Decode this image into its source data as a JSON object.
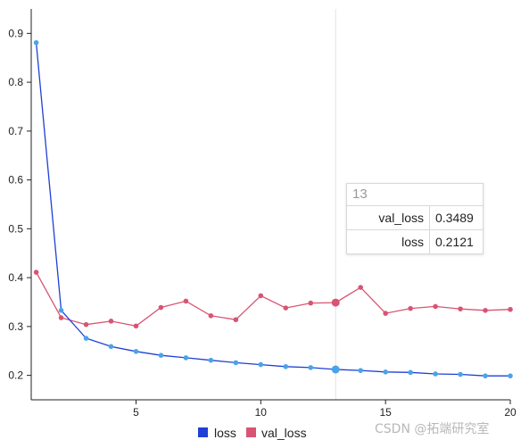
{
  "chart_data": {
    "type": "line",
    "title": "",
    "xlabel": "",
    "ylabel": "",
    "x": [
      1,
      2,
      3,
      4,
      5,
      6,
      7,
      8,
      9,
      10,
      11,
      12,
      13,
      14,
      15,
      16,
      17,
      18,
      19,
      20
    ],
    "xlim": [
      0.8,
      20
    ],
    "ylim": [
      0.15,
      0.95
    ],
    "x_ticks": [
      5,
      10,
      15,
      20
    ],
    "y_ticks": [
      0.2,
      0.3,
      0.4,
      0.5,
      0.6,
      0.7,
      0.8,
      0.9
    ],
    "x_tick_labels": [
      "5",
      "10",
      "15",
      "20"
    ],
    "y_tick_labels": [
      "0.2",
      "0.3",
      "0.4",
      "0.5",
      "0.6",
      "0.7",
      "0.8",
      "0.9"
    ],
    "grid": false,
    "legend_position": "bottom-center",
    "hover_x": 13,
    "series": [
      {
        "name": "loss",
        "line_color": "#1f3fd6",
        "marker_color": "#4aa3e8",
        "legend_color": "#1f3fd6",
        "values": [
          0.881,
          0.333,
          0.276,
          0.259,
          0.249,
          0.241,
          0.236,
          0.231,
          0.226,
          0.222,
          0.218,
          0.216,
          0.2121,
          0.21,
          0.207,
          0.206,
          0.203,
          0.202,
          0.199,
          0.199
        ]
      },
      {
        "name": "val_loss",
        "line_color": "#d95472",
        "marker_color": "#d95472",
        "legend_color": "#d95472",
        "values": [
          0.411,
          0.318,
          0.304,
          0.311,
          0.301,
          0.339,
          0.352,
          0.322,
          0.314,
          0.363,
          0.338,
          0.348,
          0.3489,
          0.38,
          0.327,
          0.337,
          0.341,
          0.336,
          0.333,
          0.335
        ]
      }
    ]
  },
  "tooltip": {
    "title": "13",
    "rows": [
      {
        "name": "val_loss",
        "value": "0.3489"
      },
      {
        "name": "loss",
        "value": "0.2121"
      }
    ]
  },
  "watermark": {
    "text": "CSDN @拓端研究室"
  }
}
